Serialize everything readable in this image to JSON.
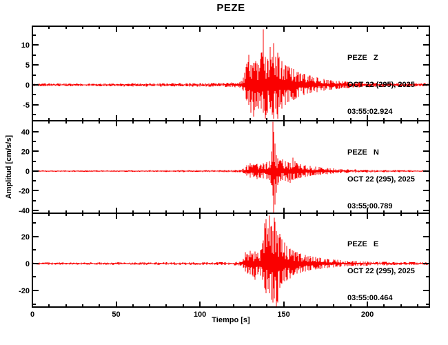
{
  "title": "PEZE",
  "chart_data": {
    "type": "line",
    "title": "PEZE",
    "xlabel": "Tiempo [s]",
    "ylabel": "Amplitud [cm/s/s]",
    "xlim": [
      0,
      237
    ],
    "xticks_major": [
      0,
      50,
      100,
      150,
      200
    ],
    "xtick_minor_step": 10,
    "grid": false,
    "trace_color": "#fa0000",
    "axis_color": "#000000",
    "panels": [
      {
        "station": "PEZE",
        "component": "Z",
        "legend": [
          "PEZE   Z",
          "OCT 22 (295), 2025",
          "03:55:02.924"
        ],
        "ylim": [
          -9.0,
          14.7
        ],
        "yticks_major": [
          10,
          5,
          0,
          -5
        ],
        "yticks_minor": [
          12.5,
          7.5,
          2.5,
          -2.5,
          -7.5
        ],
        "peak_amplitude": 13.9,
        "min_amplitude": -8.6,
        "envelope": [
          [
            0,
            0.35,
            0.35
          ],
          [
            60,
            0.4,
            0.4
          ],
          [
            100,
            0.45,
            0.45
          ],
          [
            118,
            0.55,
            0.55
          ],
          [
            124,
            0.7,
            0.7
          ],
          [
            126,
            1.8,
            1.5
          ],
          [
            127.5,
            4.5,
            3.5
          ],
          [
            129,
            7.5,
            5
          ],
          [
            130.5,
            5,
            7
          ],
          [
            132,
            5.5,
            8
          ],
          [
            133.5,
            6,
            5.5
          ],
          [
            135,
            5,
            6
          ],
          [
            136.5,
            8,
            6
          ],
          [
            138,
            13.9,
            7
          ],
          [
            139.2,
            7,
            8.6
          ],
          [
            140.5,
            6.5,
            7
          ],
          [
            141.8,
            9.5,
            6
          ],
          [
            143,
            7,
            7.5
          ],
          [
            144.2,
            10.5,
            8.5
          ],
          [
            145.3,
            7,
            6
          ],
          [
            146.4,
            8,
            8.5
          ],
          [
            147.5,
            7,
            5.5
          ],
          [
            149,
            6,
            6
          ],
          [
            151,
            5,
            5
          ],
          [
            153,
            4.6,
            4.2
          ],
          [
            156,
            4,
            3.8
          ],
          [
            159,
            3.2,
            3
          ],
          [
            162,
            2.8,
            2.6
          ],
          [
            166,
            2.3,
            2.1
          ],
          [
            170,
            1.9,
            1.8
          ],
          [
            174,
            1.5,
            1.5
          ],
          [
            178,
            1.2,
            1.2
          ],
          [
            183,
            1,
            1
          ],
          [
            188,
            0.8,
            0.8
          ],
          [
            195,
            0.65,
            0.65
          ],
          [
            205,
            0.55,
            0.55
          ],
          [
            220,
            0.5,
            0.5
          ],
          [
            237,
            0.45,
            0.45
          ]
        ]
      },
      {
        "station": "PEZE",
        "component": "N",
        "legend": [
          "PEZE   N",
          "OCT 22 (295), 2025",
          "03:55:00.789"
        ],
        "ylim": [
          -42.8,
          51.2
        ],
        "yticks_major": [
          40,
          20,
          0,
          -20,
          -40
        ],
        "yticks_minor": [
          50,
          30,
          10,
          -10,
          -30
        ],
        "peak_amplitude": 50,
        "min_amplitude": -42,
        "envelope": [
          [
            0,
            0.8,
            0.8
          ],
          [
            80,
            0.9,
            0.9
          ],
          [
            115,
            1,
            1
          ],
          [
            124,
            1.2,
            1.2
          ],
          [
            126,
            2.5,
            2
          ],
          [
            128,
            6,
            4.5
          ],
          [
            130,
            8,
            6.5
          ],
          [
            132,
            6.5,
            6
          ],
          [
            134,
            7.5,
            8
          ],
          [
            136,
            6.5,
            7
          ],
          [
            138,
            8,
            7.5
          ],
          [
            140,
            9,
            8
          ],
          [
            141.5,
            10,
            9
          ],
          [
            142.6,
            20,
            14
          ],
          [
            143.4,
            50,
            25
          ],
          [
            144.1,
            40,
            42
          ],
          [
            144.9,
            28,
            34
          ],
          [
            145.7,
            16,
            22
          ],
          [
            146.6,
            13,
            14
          ],
          [
            148,
            11,
            10
          ],
          [
            149.5,
            12,
            9
          ],
          [
            151,
            10,
            10
          ],
          [
            152.5,
            9,
            11
          ],
          [
            154,
            8.5,
            12
          ],
          [
            155.5,
            13.5,
            9
          ],
          [
            156.8,
            10,
            8
          ],
          [
            158,
            8,
            7.5
          ],
          [
            160,
            7,
            7
          ],
          [
            163,
            6,
            6
          ],
          [
            166,
            5.2,
            5
          ],
          [
            169,
            4.5,
            4.3
          ],
          [
            172,
            4,
            3.8
          ],
          [
            176,
            3.3,
            3.2
          ],
          [
            180,
            2.7,
            2.6
          ],
          [
            184,
            2.2,
            2.2
          ],
          [
            188,
            1.9,
            1.9
          ],
          [
            193,
            1.6,
            1.6
          ],
          [
            200,
            1.35,
            1.35
          ],
          [
            210,
            1.15,
            1.15
          ],
          [
            225,
            1,
            1
          ],
          [
            237,
            0.95,
            0.95
          ]
        ]
      },
      {
        "station": "PEZE",
        "component": "E",
        "legend": [
          "PEZE   E",
          "OCT 22 (295), 2025",
          "03:55:00.464"
        ],
        "ylim": [
          -32.3,
          37.4
        ],
        "yticks_major": [
          20,
          0,
          -20
        ],
        "yticks_minor": [
          30,
          10,
          -10,
          -30
        ],
        "peak_amplitude": 35.5,
        "min_amplitude": -33,
        "envelope": [
          [
            0,
            0.9,
            0.9
          ],
          [
            80,
            1,
            1
          ],
          [
            115,
            1.1,
            1.1
          ],
          [
            124,
            1.4,
            1.4
          ],
          [
            126,
            3.5,
            3
          ],
          [
            127.2,
            8.5,
            6
          ],
          [
            128.5,
            7,
            7.5
          ],
          [
            130,
            9.5,
            8
          ],
          [
            131.5,
            7.5,
            9.5
          ],
          [
            133,
            9,
            12
          ],
          [
            134.5,
            8,
            8
          ],
          [
            136,
            10,
            9
          ],
          [
            137.5,
            15,
            12
          ],
          [
            138.6,
            30,
            18
          ],
          [
            139.6,
            33,
            22
          ],
          [
            140.6,
            26,
            19
          ],
          [
            141.6,
            35.5,
            22
          ],
          [
            142.6,
            28,
            27
          ],
          [
            143.6,
            24,
            29
          ],
          [
            144.6,
            34,
            26
          ],
          [
            145.6,
            24,
            33
          ],
          [
            146.6,
            21,
            29
          ],
          [
            147.8,
            22,
            18
          ],
          [
            149,
            18,
            15
          ],
          [
            150.5,
            15.5,
            13
          ],
          [
            152,
            13,
            12.5
          ],
          [
            154,
            11,
            11
          ],
          [
            156,
            9.5,
            8.5
          ],
          [
            158,
            8.5,
            7.5
          ],
          [
            160,
            7.5,
            7
          ],
          [
            163,
            6.5,
            5.8
          ],
          [
            166,
            5.5,
            5
          ],
          [
            169,
            4.8,
            4.4
          ],
          [
            172,
            4.2,
            4
          ],
          [
            176,
            3.5,
            3.3
          ],
          [
            180,
            3,
            2.8
          ],
          [
            184,
            2.5,
            2.4
          ],
          [
            188,
            2.1,
            2.1
          ],
          [
            193,
            1.8,
            1.8
          ],
          [
            200,
            1.5,
            1.5
          ],
          [
            210,
            1.3,
            1.3
          ],
          [
            225,
            1.15,
            1.15
          ],
          [
            237,
            1.1,
            1.1
          ]
        ]
      }
    ]
  }
}
